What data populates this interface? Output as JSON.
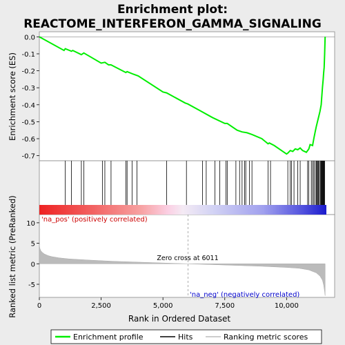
{
  "chart_data": {
    "type": "line",
    "title_line1": "Enrichment plot:",
    "title_line2": "REACTOME_INTERFERON_GAMMA_SIGNALING",
    "xlabel": "Rank in Ordered Dataset",
    "ylabel_top": "Enrichment score (ES)",
    "ylabel_bottom": "Ranked list metric (PreRanked)",
    "x_range": [
      0,
      12000
    ],
    "es_ylim": [
      -0.73,
      0.03
    ],
    "metric_ylim": [
      -8.2,
      12.0
    ],
    "x_ticks": [
      0,
      2500,
      5000,
      7500,
      10000
    ],
    "x_tick_labels": [
      "0",
      "2,500",
      "5,000",
      "7,500",
      "10,000"
    ],
    "es_ticks": [
      0.0,
      -0.1,
      -0.2,
      -0.3,
      -0.4,
      -0.5,
      -0.6,
      -0.7
    ],
    "es_tick_labels": [
      "0.0",
      "-0.1",
      "-0.2",
      "-0.3",
      "-0.4",
      "-0.5",
      "-0.6",
      "-0.7"
    ],
    "metric_ticks": [
      10,
      5,
      0,
      -5
    ],
    "metric_tick_labels": [
      "10",
      "5",
      "0",
      "-5"
    ],
    "es_curve": {
      "x": [
        0,
        1000,
        1050,
        1300,
        1350,
        1700,
        1800,
        2500,
        2650,
        2800,
        2900,
        3500,
        3550,
        3800,
        4000,
        5000,
        5150,
        5900,
        6000,
        6500,
        7000,
        7500,
        7600,
        8000,
        8200,
        8400,
        8600,
        9000,
        9250,
        9300,
        9500,
        10000,
        10050,
        10150,
        10250,
        10350,
        10450,
        10550,
        10650,
        10800,
        10900,
        10950,
        11050,
        11100,
        11150,
        11200,
        11250,
        11300,
        11350,
        11400,
        11420,
        11450,
        11480,
        11500,
        11520,
        11540,
        11560
      ],
      "y": [
        0.0,
        -0.08,
        -0.07,
        -0.085,
        -0.08,
        -0.105,
        -0.095,
        -0.155,
        -0.15,
        -0.165,
        -0.165,
        -0.21,
        -0.205,
        -0.22,
        -0.23,
        -0.325,
        -0.33,
        -0.39,
        -0.395,
        -0.435,
        -0.475,
        -0.51,
        -0.51,
        -0.55,
        -0.56,
        -0.565,
        -0.575,
        -0.6,
        -0.63,
        -0.625,
        -0.64,
        -0.69,
        -0.685,
        -0.67,
        -0.675,
        -0.66,
        -0.665,
        -0.655,
        -0.67,
        -0.68,
        -0.66,
        -0.635,
        -0.64,
        -0.6,
        -0.565,
        -0.53,
        -0.5,
        -0.47,
        -0.44,
        -0.4,
        -0.36,
        -0.3,
        -0.25,
        -0.21,
        -0.18,
        -0.1,
        0.0
      ]
    },
    "hit_ranks": [
      1050,
      1300,
      1700,
      1800,
      2550,
      2650,
      2900,
      3500,
      3550,
      3750,
      3950,
      5150,
      5950,
      6600,
      6750,
      7100,
      7300,
      7550,
      7600,
      7950,
      8100,
      8200,
      8300,
      8350,
      8500,
      8600,
      9250,
      9350,
      10050,
      10150,
      10200,
      10300,
      10450,
      10550,
      10850,
      10900,
      11000,
      11050,
      11100,
      11150,
      11200,
      11220,
      11250,
      11280,
      11300,
      11350,
      11380,
      11400,
      11420,
      11440,
      11460,
      11480,
      11500,
      11520,
      11540
    ],
    "metric_curve": {
      "x": [
        0,
        20,
        60,
        120,
        200,
        350,
        500,
        800,
        1200,
        2000,
        3000,
        4000,
        5000,
        6011,
        7000,
        8000,
        9000,
        10000,
        10500,
        10900,
        11200,
        11350,
        11450,
        11500,
        11540,
        11560
      ],
      "y": [
        4.6,
        3.8,
        3.2,
        2.8,
        2.4,
        2.0,
        1.75,
        1.45,
        1.2,
        0.9,
        0.6,
        0.4,
        0.2,
        0.0,
        -0.2,
        -0.4,
        -0.6,
        -0.9,
        -1.1,
        -1.5,
        -2.2,
        -3.0,
        -4.0,
        -5.2,
        -6.8,
        -7.8
      ]
    },
    "zero_cross_rank": 6011,
    "zero_cross_label": "Zero cross at 6011",
    "pos_label": "'na_pos' (positively correlated)",
    "neg_label": "'na_neg' (negatively correlated)",
    "pos_label_color": "#cc0000",
    "neg_label_color": "#0000cc",
    "legend": {
      "items": [
        {
          "label": "Enrichment profile",
          "color": "#00ee00"
        },
        {
          "label": "Hits",
          "color": "#000000"
        },
        {
          "label": "Ranking metric scores",
          "color": "#bbbbbb"
        }
      ]
    },
    "colors": {
      "es_line": "#00ee00",
      "metric_fill": "#bbbbbb",
      "plot_bg": "#ffffff",
      "page_bg": "#ececec"
    }
  }
}
